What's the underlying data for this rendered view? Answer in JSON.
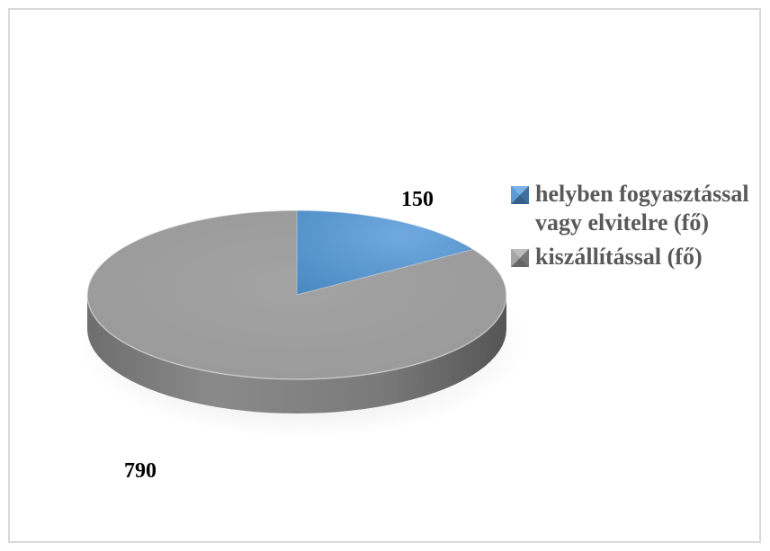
{
  "chart_data": {
    "type": "pie",
    "title": "",
    "categories": [
      "helyben fogyasztással vagy elvitelre (fő)",
      "kiszállítással (fő)"
    ],
    "values": [
      150,
      790
    ],
    "data_labels": [
      "150",
      "790"
    ],
    "colors": [
      "#5b9bd5",
      "#a5a5a5"
    ],
    "legend_placement": "right",
    "style": "3d"
  }
}
